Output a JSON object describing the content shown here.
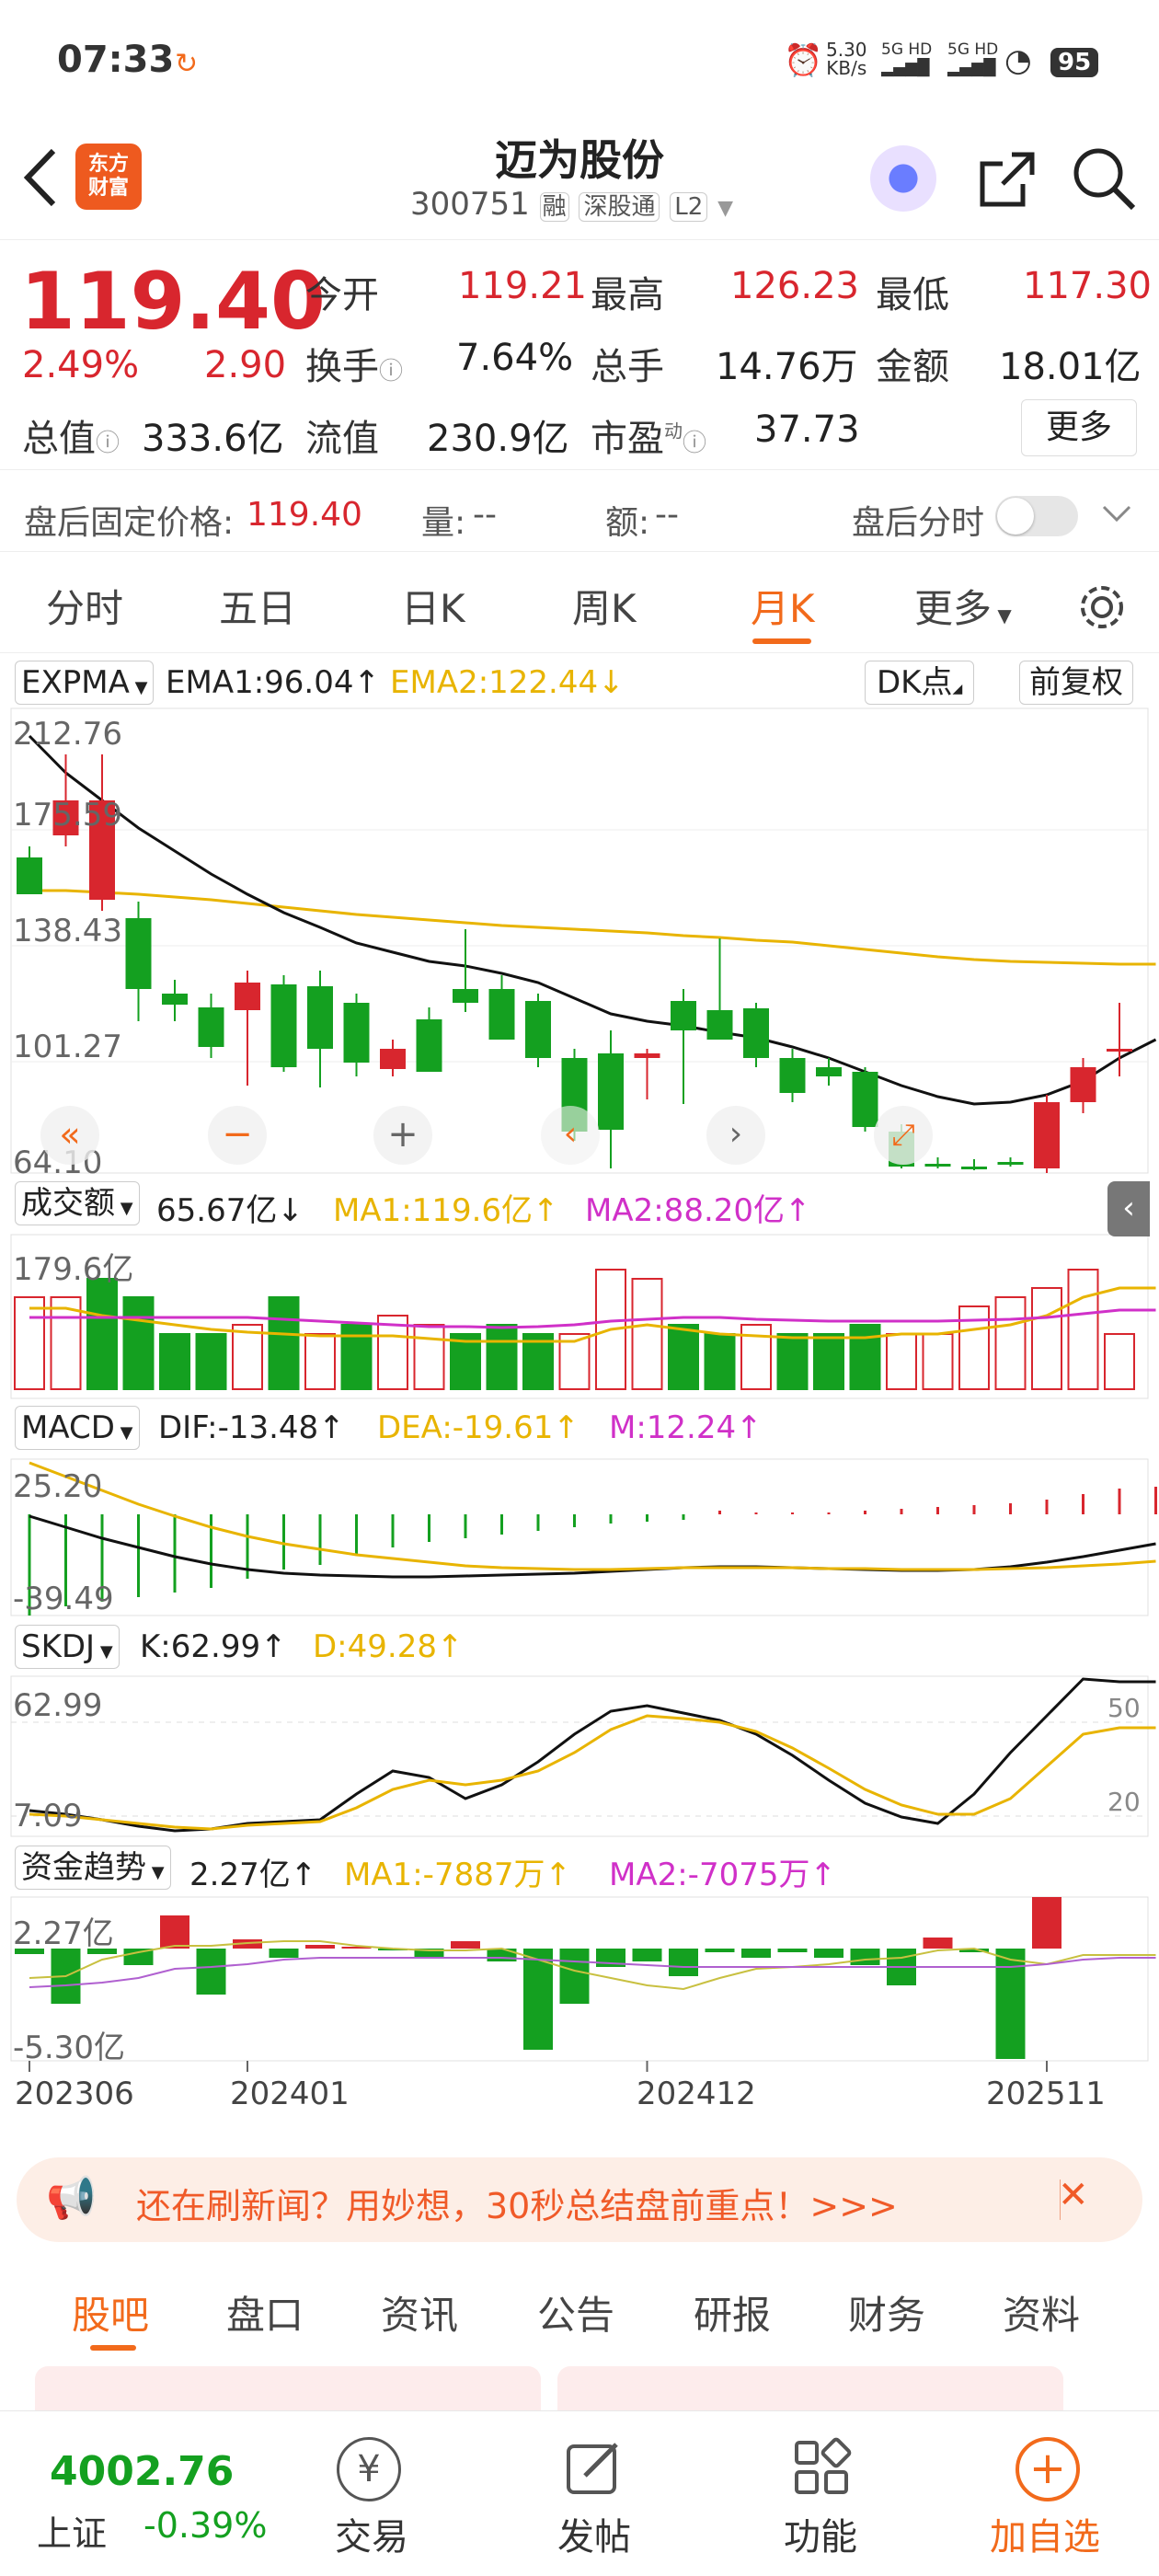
{
  "status": {
    "time": "07:33",
    "speed": "5.30",
    "speed_unit": "KB/s",
    "net1": "5G HD",
    "net2": "5G HD",
    "battery": "95"
  },
  "nav": {
    "title": "迈为股份",
    "code": "300751",
    "tag1": "融",
    "tag2": "深股通",
    "tag3": "L2",
    "brand": "东方财富"
  },
  "quote": {
    "price": "119.40",
    "pct": "2.49%",
    "chg": "2.90",
    "open_l": "今开",
    "open": "119.21",
    "high_l": "最高",
    "high": "126.23",
    "low_l": "最低",
    "low": "117.30",
    "turn_l": "换手",
    "turn": "7.64%",
    "vol_l": "总手",
    "vol": "14.76万",
    "amt_l": "金额",
    "amt": "18.01亿",
    "mcap_l": "总值",
    "mcap": "333.6亿",
    "float_l": "流值",
    "float": "230.9亿",
    "pe_l": "市盈",
    "pe_sup": "动",
    "pe": "37.73",
    "more": "更多"
  },
  "afterhours": {
    "price_l": "盘后固定价格:",
    "price": "119.40",
    "vol_l": "量:",
    "vol": "--",
    "amt_l": "额:",
    "amt": "--",
    "toggle_l": "盘后分时"
  },
  "tabs": [
    "分时",
    "五日",
    "日K",
    "周K",
    "月K",
    "更多"
  ],
  "kline": {
    "ind": "EXPMA",
    "ema1": "EMA1:96.04",
    "ema2": "EMA2:122.44",
    "dk": "DK点",
    "fq": "前复权",
    "y": [
      "212.76",
      "175.59",
      "138.43",
      "101.27",
      "64.10"
    ]
  },
  "volume": {
    "ind": "成交额",
    "val": "65.67亿",
    "ma1": "MA1:119.6亿",
    "ma2": "MA2:88.20亿",
    "y": "179.6亿"
  },
  "macd": {
    "ind": "MACD",
    "dif": "DIF:-13.48",
    "dea": "DEA:-19.61",
    "m": "M:12.24",
    "y1": "25.20",
    "y2": "-39.49"
  },
  "skdj": {
    "ind": "SKDJ",
    "k": "K:62.99",
    "d": "D:49.28",
    "y1": "62.99",
    "y2": "7.09",
    "r1": "50",
    "r2": "20"
  },
  "fund": {
    "ind": "资金趋势",
    "val": "2.27亿",
    "ma1": "MA1:-7887万",
    "ma2": "MA2:-7075万",
    "y1": "2.27亿",
    "y2": "-5.30亿"
  },
  "xaxis": [
    "202306",
    "202401",
    "202412",
    "202511"
  ],
  "banner": {
    "text": "还在刷新闻？用妙想，30秒总结盘前重点！>>>"
  },
  "subtabs": [
    "股吧",
    "盘口",
    "资讯",
    "公告",
    "研报",
    "财务",
    "资料"
  ],
  "bottom": {
    "index_val": "4002.76",
    "index_name": "上证",
    "index_pct": "-0.39%",
    "trade": "交易",
    "post": "发帖",
    "func": "功能",
    "add": "加自选"
  }
}
